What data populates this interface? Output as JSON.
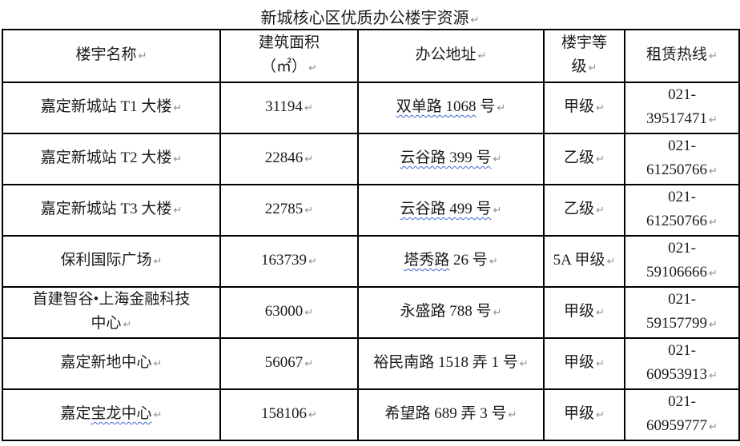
{
  "title": {
    "text": "新城核心区优质办公楼宇资源",
    "mark": "↵"
  },
  "marks": {
    "paragraph": "↵"
  },
  "colors": {
    "text": "#1c1c1c",
    "border": "#000000",
    "wavy_underline": "#3b66d1",
    "paragraph_mark": "#8f8f8f"
  },
  "table": {
    "columns": [
      {
        "label": "楼宇名称"
      },
      {
        "label": "建筑面积\n（㎡）"
      },
      {
        "label": "办公地址"
      },
      {
        "label": "楼宇等\n级"
      },
      {
        "label": "租赁热线"
      }
    ],
    "rows": [
      {
        "name": [
          {
            "text": "嘉定新城站 T1 大楼",
            "wavy": false
          }
        ],
        "area": "31194",
        "address": [
          {
            "text": "双单路 1068",
            "wavy": true
          },
          {
            "text": " 号",
            "wavy": false
          }
        ],
        "grade": "甲级",
        "phone": "021-\n39517471"
      },
      {
        "name": [
          {
            "text": "嘉定新城站 T2 大楼",
            "wavy": false
          }
        ],
        "area": "22846",
        "address": [
          {
            "text": "云谷路 399 号",
            "wavy": true
          }
        ],
        "grade": "乙级",
        "phone": "021-\n61250766"
      },
      {
        "name": [
          {
            "text": "嘉定新城站 T3 大楼",
            "wavy": false
          }
        ],
        "area": "22785",
        "address": [
          {
            "text": "云谷路 499 号",
            "wavy": true
          }
        ],
        "grade": "乙级",
        "phone": "021-\n61250766"
      },
      {
        "name": [
          {
            "text": "保利国际广场",
            "wavy": false
          }
        ],
        "area": "163739",
        "address": [
          {
            "text": "塔秀路",
            "wavy": true
          },
          {
            "text": " 26 号",
            "wavy": false
          }
        ],
        "grade": "5A 甲级",
        "phone": "021-\n59106666"
      },
      {
        "name": [
          {
            "text": "首建智谷•上海金融科技\n中心",
            "wavy": false
          }
        ],
        "area": "63000",
        "address": [
          {
            "text": "永盛路 788 号",
            "wavy": false
          }
        ],
        "grade": "甲级",
        "phone": "021-\n59157799"
      },
      {
        "name": [
          {
            "text": "嘉定新地中心",
            "wavy": false
          }
        ],
        "area": "56067",
        "address": [
          {
            "text": "裕民南路 1518 弄 1 号",
            "wavy": false
          }
        ],
        "grade": "甲级",
        "phone": "021-\n60953913"
      },
      {
        "name": [
          {
            "text": "嘉定",
            "wavy": false
          },
          {
            "text": "宝龙中心",
            "wavy": true
          }
        ],
        "area": "158106",
        "address": [
          {
            "text": "希望路 689 弄 3 号",
            "wavy": false
          }
        ],
        "grade": "甲级",
        "phone": "021-\n60959777"
      }
    ]
  }
}
